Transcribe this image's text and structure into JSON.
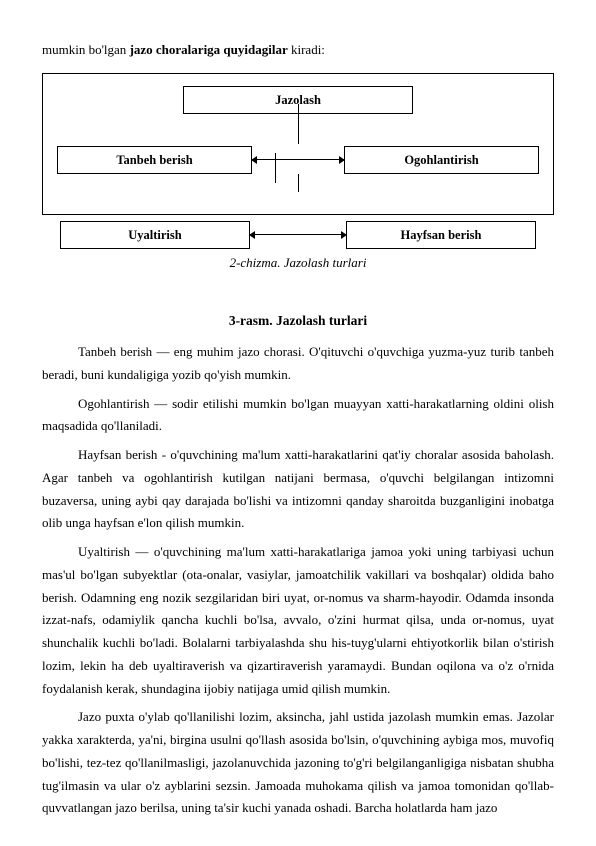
{
  "intro": {
    "prefix": "mumkin bo'lgan ",
    "bold": "jazo choralariga quyidagilar",
    "suffix": " kiradi:"
  },
  "diagram": {
    "top": "Jazolash",
    "mid_left": "Tanbeh berish",
    "mid_right": "Ogohlantirish",
    "bottom_left": "Uyaltirish",
    "bottom_right": "Hayfsan berish",
    "caption": "2-chizma. Jazolash turlari"
  },
  "section_title": "3-rasm. Jazolash turlari",
  "paragraphs": [
    "Tanbeh berish — eng muhim jazo chorasi. O'qituvchi o'quvchiga yuzma-yuz turib tanbeh beradi, buni kundaligiga yozib qo'yish mumkin.",
    "Ogohlantirish — sodir etilishi mumkin bo'lgan muayyan xatti-harakatlarning oldini olish maqsadida qo'llaniladi.",
    "Hayfsan berish - o'quvchining ma'lum xatti-harakatlarini qat'iy choralar asosida baholash. Agar tanbeh va ogohlantirish kutilgan natijani bermasa, o'quvchi belgilangan intizomni buzaversa, uning aybi qay darajada bo'lishi va intizomni qanday sharoitda buzganligini inobatga olib unga hayfsan e'lon qilish mumkin.",
    "Uyaltirish — o'quvchining ma'lum xatti-harakatlariga jamoa yoki uning tarbiyasi uchun mas'ul bo'lgan subyektlar (ota-onalar, vasiylar, jamoatchilik vakillari va boshqalar) oldida baho berish. Odamning eng nozik sezgilaridan biri uyat, or-nomus va sharm-hayodir. Odamda insonda izzat-nafs, odamiylik qancha kuchli bo'lsa, avvalo, o'zini hurmat qilsa, unda or-nomus, uyat shunchalik kuchli bo'ladi. Bolalarni tarbiyalashda shu his-tuyg'ularni ehtiyotkorlik bilan o'stirish lozim, lekin ha deb uyaltiraverish va qizartiraverish yaramaydi. Bundan oqilona va o'z o'rnida foydalanish kerak, shundagina ijobiy natijaga umid qilish mumkin.",
    "Jazo puxta o'ylab qo'llanilishi lozim, aksincha, jahl ustida jazolash mumkin emas. Jazolar yakka xarakterda, ya'ni, birgina usulni qo'llash asosida bo'lsin, o'quvchining aybiga mos, muvofiq bo'lishi, tez-tez qo'llanilmasligi, jazolanuvchida jazoning to'g'ri belgilanganligiga nisbatan shubha tug'ilmasin va ular o'z ayblarini sezsin. Jamoada muhokama qilish va jamoa tomonidan qo'llab-quvvatlangan jazo berilsa, uning ta'sir kuchi yanada oshadi. Barcha holatlarda ham jazo"
  ]
}
